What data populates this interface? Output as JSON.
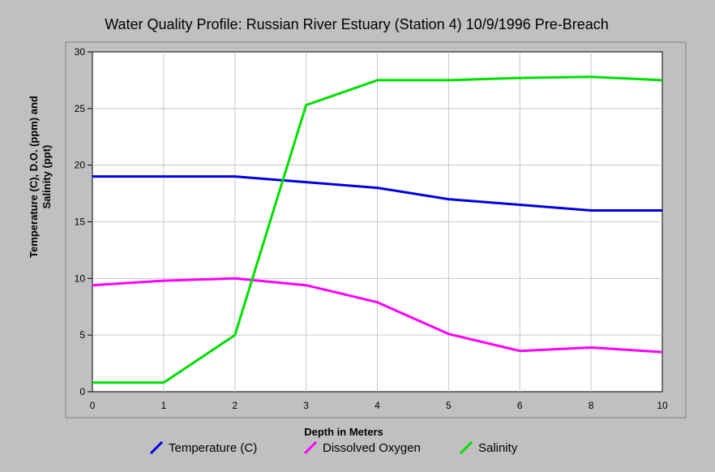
{
  "chart_data": {
    "type": "line",
    "title": "Water Quality Profile: Russian River Estuary (Station 4) 10/9/1996 Pre-Breach",
    "xlabel": "Depth in Meters",
    "ylabel_line1": "Temperature (C), D.O. (ppm) and",
    "ylabel_line2": "Salinity (ppt)",
    "categories": [
      "0",
      "1",
      "2",
      "3",
      "4",
      "5",
      "6",
      "8",
      "10"
    ],
    "ylim": [
      0,
      30
    ],
    "yticks": [
      "0",
      "5",
      "10",
      "15",
      "20",
      "25",
      "30"
    ],
    "grid": true,
    "legend_position": "bottom",
    "series": [
      {
        "name": "Temperature (C)",
        "color": "#0000e0",
        "values": [
          19,
          19,
          19,
          18.5,
          18,
          17,
          16.5,
          16,
          16
        ]
      },
      {
        "name": "Dissolved Oxygen",
        "color": "#ff00ff",
        "values": [
          9.4,
          9.8,
          10.0,
          9.4,
          7.9,
          5.1,
          3.6,
          3.9,
          3.5
        ]
      },
      {
        "name": "Salinity",
        "color": "#00e000",
        "values": [
          0.8,
          0.8,
          5.0,
          25.3,
          27.5,
          27.5,
          27.7,
          27.8,
          27.5
        ]
      }
    ]
  }
}
